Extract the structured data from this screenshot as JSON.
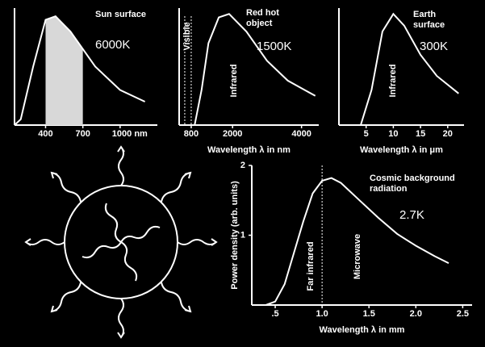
{
  "chart_data": [
    {
      "type": "line",
      "title": "Sun surface",
      "annotation": "6000K",
      "color": "#ffffff",
      "x": [
        150,
        200,
        300,
        400,
        480,
        600,
        700,
        800,
        1000,
        1200
      ],
      "values": [
        0,
        0.05,
        0.5,
        0.9,
        0.93,
        0.8,
        0.65,
        0.5,
        0.3,
        0.2
      ],
      "xlim": [
        150,
        1300
      ],
      "ylim": [
        0,
        1
      ],
      "xticks": [
        400,
        700,
        {
          "value": 1000,
          "label": "1000 nm"
        }
      ]
    },
    {
      "type": "line",
      "title": "Red hot object",
      "annotation": "1500K",
      "color": "#ffffff",
      "region_labels": [
        "Visible",
        "Infrared"
      ],
      "x": [
        900,
        1100,
        1300,
        1600,
        1900,
        2400,
        3000,
        3600,
        4400
      ],
      "values": [
        0,
        0.3,
        0.7,
        0.92,
        0.95,
        0.8,
        0.55,
        0.38,
        0.25
      ],
      "xlim": [
        450,
        4500
      ],
      "ylim": [
        0,
        1
      ],
      "xticks": [
        800,
        2000,
        4000
      ],
      "xlabel": "Wavelength λ in nm"
    },
    {
      "type": "line",
      "title": "Earth surface",
      "annotation": "300K",
      "color": "#ffffff",
      "region_labels": [
        "Infrared"
      ],
      "x": [
        4,
        6,
        8,
        10,
        12,
        15,
        18,
        22
      ],
      "values": [
        0,
        0.3,
        0.8,
        0.95,
        0.85,
        0.6,
        0.42,
        0.27
      ],
      "xlim": [
        0,
        23
      ],
      "ylim": [
        0,
        1
      ],
      "xticks": [
        5,
        10,
        15,
        20
      ],
      "xlabel": "Wavelength λ in μm"
    },
    {
      "type": "line",
      "title": "Cosmic background radiation",
      "annotation": "2.7K",
      "color": "#ffffff",
      "region_labels": [
        "Far infrared",
        "Microwave"
      ],
      "x": [
        0.4,
        0.5,
        0.6,
        0.7,
        0.8,
        0.9,
        1.0,
        1.1,
        1.2,
        1.4,
        1.6,
        1.8,
        2.0,
        2.2,
        2.35
      ],
      "values": [
        0,
        0.05,
        0.3,
        0.75,
        1.2,
        1.6,
        1.78,
        1.82,
        1.75,
        1.5,
        1.25,
        1.02,
        0.85,
        0.7,
        0.6
      ],
      "xlim": [
        0.25,
        2.6
      ],
      "ylim": [
        0,
        2
      ],
      "xticks": [
        {
          "value": 0.5,
          "label": ".5"
        },
        {
          "value": 1,
          "label": "1.0"
        },
        {
          "value": 1.5,
          "label": "1.5"
        },
        {
          "value": 2,
          "label": "2.0"
        },
        {
          "value": 2.5,
          "label": "2.5"
        }
      ],
      "yticks": [
        1,
        2
      ],
      "xlabel": "Wavelength λ in mm",
      "ylabel": "Power density (arb. units)"
    }
  ]
}
